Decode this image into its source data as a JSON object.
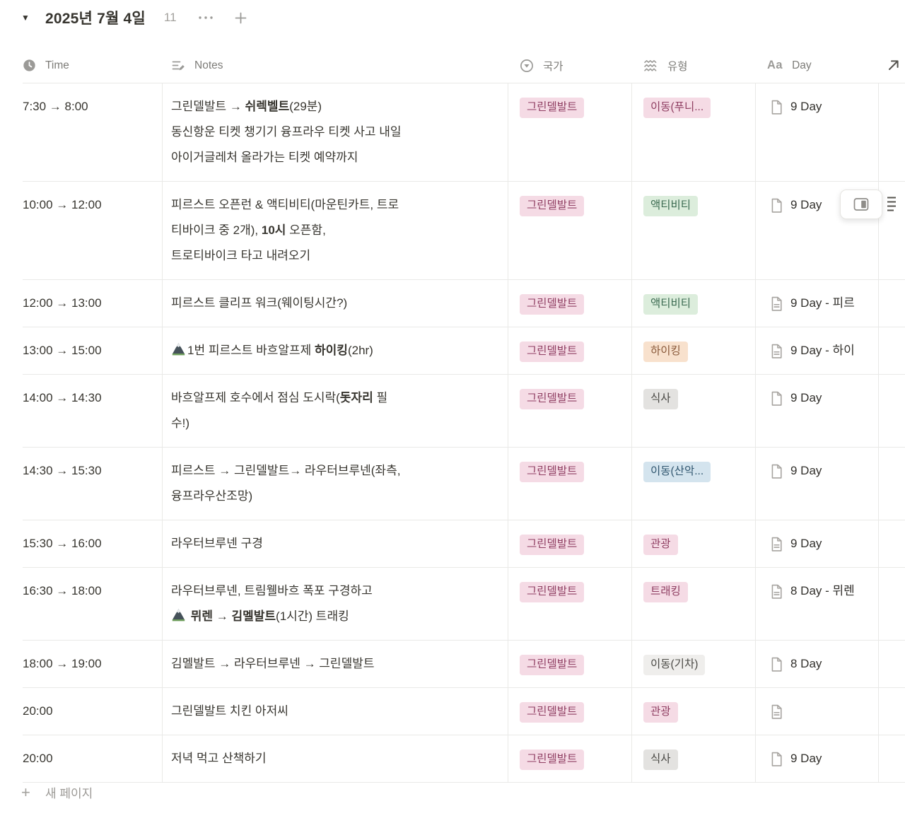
{
  "title_bar": {
    "title": "2025년 7월 4일",
    "count": "11"
  },
  "table": {
    "columns": [
      {
        "label": "Time",
        "icon": "clock-icon"
      },
      {
        "label": "Notes",
        "icon": "notes-icon"
      },
      {
        "label": "국가",
        "icon": "select-icon"
      },
      {
        "label": "유형",
        "icon": "multi-select-icon"
      },
      {
        "label": "Day",
        "icon": "text-icon"
      }
    ],
    "colors": {
      "pink": {
        "bg": "#F5DBE5",
        "fg": "#8F3E62"
      },
      "green": {
        "bg": "#DCEDDC",
        "fg": "#3A6A50"
      },
      "orange": {
        "bg": "#F8E1CD",
        "fg": "#8A5A3B"
      },
      "gray": {
        "bg": "#E3E2E0",
        "fg": "#4A4945"
      },
      "lightgray": {
        "bg": "#EFEEEC",
        "fg": "#4A4945"
      },
      "blue": {
        "bg": "#D4E4EE",
        "fg": "#30566F"
      }
    },
    "rows": [
      {
        "time": "7:30 → 8:00",
        "notes": [
          {
            "t": "그린델발트 → "
          },
          {
            "t": "쉬렉벨트",
            "b": true
          },
          {
            "t": "(29분)\n동신항운 티켓 챙기기 융프라우 티켓 사고 내일\n아이거글레처 올라가는 티켓 예약까지"
          }
        ],
        "country": {
          "label": "그린델발트",
          "color": "pink"
        },
        "type": {
          "label": "이동(푸니...",
          "color": "pink"
        },
        "day": {
          "icon": "page-plain",
          "text": "9 Day"
        }
      },
      {
        "time": "10:00 → 12:00",
        "notes": [
          {
            "t": "피르스트 오픈런 & 액티비티(마운틴카트, 트로\n티바이크 중 2개), "
          },
          {
            "t": "10시",
            "b": true
          },
          {
            "t": " 오픈함,\n트로티바이크 타고 내려오기"
          }
        ],
        "country": {
          "label": "그린델발트",
          "color": "pink"
        },
        "type": {
          "label": "액티비티",
          "color": "green"
        },
        "day": {
          "icon": "page-plain",
          "text": "9 Day"
        }
      },
      {
        "time": "12:00 → 13:00",
        "notes": [
          {
            "t": "피르스트 클리프 워크(웨이팅시간?)"
          }
        ],
        "country": {
          "label": "그린델발트",
          "color": "pink"
        },
        "type": {
          "label": "액티비티",
          "color": "green"
        },
        "day": {
          "icon": "page-lines",
          "text": "9 Day - 피르"
        }
      },
      {
        "time": "13:00 → 15:00",
        "notes": [
          {
            "ic": "mountain-icon"
          },
          {
            "t": "1번 피르스트 바흐알프제 "
          },
          {
            "t": "하이킹",
            "b": true
          },
          {
            "t": "(2hr)"
          }
        ],
        "country": {
          "label": "그린델발트",
          "color": "pink"
        },
        "type": {
          "label": "하이킹",
          "color": "orange"
        },
        "day": {
          "icon": "page-lines",
          "text": "9 Day - 하이"
        }
      },
      {
        "time": "14:00 → 14:30",
        "notes": [
          {
            "t": "바흐알프제 호수에서 점심 도시락("
          },
          {
            "t": "돗자리",
            "b": true
          },
          {
            "t": " 필\n수!)"
          }
        ],
        "country": {
          "label": "그린델발트",
          "color": "pink"
        },
        "type": {
          "label": "식사",
          "color": "gray"
        },
        "day": {
          "icon": "page-plain",
          "text": "9 Day"
        }
      },
      {
        "time": "14:30 → 15:30",
        "notes": [
          {
            "t": "피르스트 → 그린델발트→ 라우터브루넨(좌측,\n융프라우산조망)"
          }
        ],
        "country": {
          "label": "그린델발트",
          "color": "pink"
        },
        "type": {
          "label": "이동(산악...",
          "color": "blue"
        },
        "day": {
          "icon": "page-plain",
          "text": "9 Day"
        }
      },
      {
        "time": "15:30 → 16:00",
        "notes": [
          {
            "t": "라우터브루넨 구경"
          }
        ],
        "country": {
          "label": "그린델발트",
          "color": "pink"
        },
        "type": {
          "label": "관광",
          "color": "pink"
        },
        "day": {
          "icon": "page-lines",
          "text": "9 Day"
        }
      },
      {
        "time": "16:30 → 18:00",
        "notes": [
          {
            "t": "라우터브루넨, 트림웰바흐 폭포 구경하고\n"
          },
          {
            "ic": "mountain-icon"
          },
          {
            "t": " "
          },
          {
            "t": "뮈렌",
            "b": true
          },
          {
            "t": " → "
          },
          {
            "t": "김멜발트",
            "b": true
          },
          {
            "t": "(1시간) 트래킹"
          }
        ],
        "country": {
          "label": "그린델발트",
          "color": "pink"
        },
        "type": {
          "label": "트래킹",
          "color": "pink"
        },
        "day": {
          "icon": "page-lines",
          "text": "8 Day - 뮈렌"
        }
      },
      {
        "time": "18:00 → 19:00",
        "notes": [
          {
            "t": "김멜발트 → 라우터브루넨 → 그린델발트"
          }
        ],
        "country": {
          "label": "그린델발트",
          "color": "pink"
        },
        "type": {
          "label": "이동(기차)",
          "color": "lightgray"
        },
        "day": {
          "icon": "page-plain",
          "text": "8 Day"
        }
      },
      {
        "time": "20:00",
        "notes": [
          {
            "t": "그린델발트 치킨 아저씨"
          }
        ],
        "country": {
          "label": "그린델발트",
          "color": "pink"
        },
        "type": {
          "label": "관광",
          "color": "pink"
        },
        "day": {
          "icon": "page-lines",
          "text": ""
        }
      },
      {
        "time": "20:00",
        "notes": [
          {
            "t": "저녁 먹고 산책하기"
          }
        ],
        "country": {
          "label": "그린델발트",
          "color": "pink"
        },
        "type": {
          "label": "식사",
          "color": "gray"
        },
        "day": {
          "icon": "page-plain",
          "text": "9 Day"
        }
      }
    ]
  },
  "footer": {
    "new_page_label": "새 페이지"
  }
}
